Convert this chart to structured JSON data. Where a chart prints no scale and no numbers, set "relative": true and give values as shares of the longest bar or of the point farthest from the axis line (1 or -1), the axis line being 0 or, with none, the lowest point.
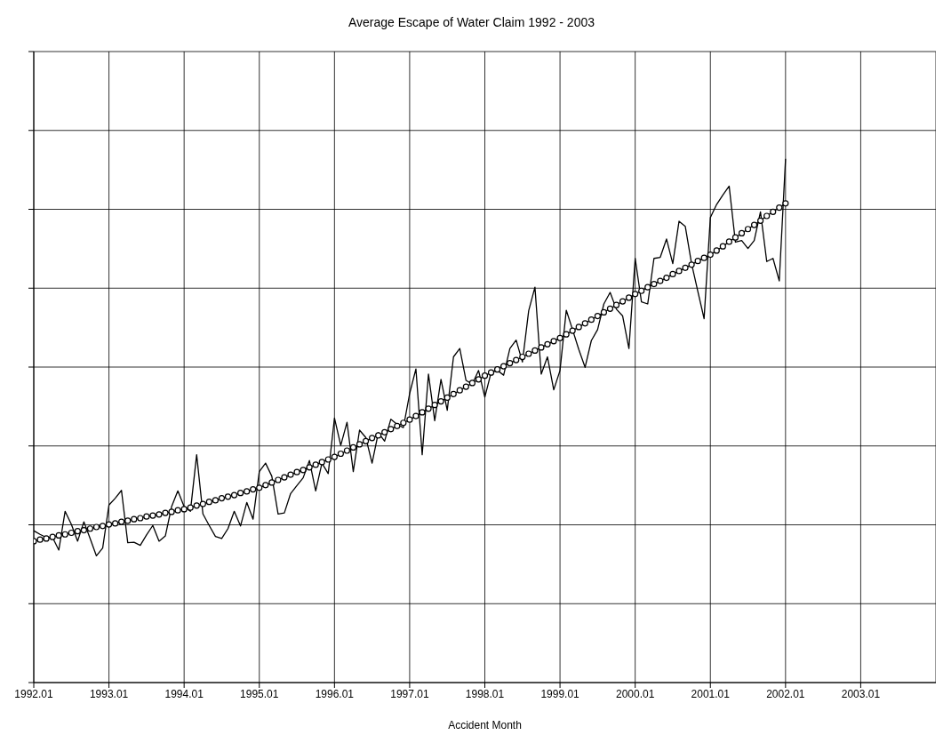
{
  "chart_data": {
    "type": "line",
    "title": "Average Escape of Water Claim 1992 - 2003",
    "xlabel": "Accident Month",
    "relative": true,
    "grid": true,
    "categories": [
      "1992.01",
      null,
      null,
      null,
      null,
      null,
      null,
      null,
      null,
      null,
      null,
      null,
      "1993.01",
      null,
      null,
      null,
      null,
      null,
      null,
      null,
      null,
      null,
      null,
      null,
      "1994.01",
      null,
      null,
      null,
      null,
      null,
      null,
      null,
      null,
      null,
      null,
      null,
      "1995.01",
      null,
      null,
      null,
      null,
      null,
      null,
      null,
      null,
      null,
      null,
      null,
      "1996.01",
      null,
      null,
      null,
      null,
      null,
      null,
      null,
      null,
      null,
      null,
      null,
      "1997.01",
      null,
      null,
      null,
      null,
      null,
      null,
      null,
      null,
      null,
      null,
      null,
      "1998.01",
      null,
      null,
      null,
      null,
      null,
      null,
      null,
      null,
      null,
      null,
      null,
      "1999.01",
      null,
      null,
      null,
      null,
      null,
      null,
      null,
      null,
      null,
      null,
      null,
      "2000.01",
      null,
      null,
      null,
      null,
      null,
      null,
      null,
      null,
      null,
      null,
      null,
      "2001.01",
      null,
      null,
      null,
      null,
      null,
      null,
      null,
      null,
      null,
      null,
      null,
      "2002.01",
      null,
      null,
      null,
      null,
      null,
      null,
      null,
      null,
      null,
      null,
      null,
      "2003.01",
      null,
      null,
      null,
      null,
      null,
      null,
      null,
      null,
      null,
      null,
      null
    ],
    "series": [
      {
        "color": "#000000",
        "marker": "none",
        "line_style": "solid",
        "values": [
          0.29,
          0.283,
          0.277,
          0.277,
          0.253,
          0.327,
          0.302,
          0.27,
          0.307,
          0.275,
          0.242,
          0.257,
          0.339,
          0.352,
          0.367,
          0.267,
          0.268,
          0.262,
          0.282,
          0.3,
          0.27,
          0.28,
          0.336,
          0.366,
          0.336,
          0.327,
          0.435,
          0.322,
          0.3,
          0.279,
          0.275,
          0.294,
          0.327,
          0.299,
          0.344,
          0.312,
          0.403,
          0.419,
          0.394,
          0.322,
          0.324,
          0.361,
          0.376,
          0.391,
          0.424,
          0.366,
          0.419,
          0.399,
          0.505,
          0.453,
          0.497,
          0.403,
          0.482,
          0.468,
          0.419,
          0.477,
          0.461,
          0.503,
          0.493,
          0.487,
          0.552,
          0.599,
          0.435,
          0.589,
          0.5,
          0.579,
          0.52,
          0.622,
          0.638,
          0.577,
          0.57,
          0.596,
          0.545,
          0.592,
          0.596,
          0.587,
          0.638,
          0.654,
          0.612,
          0.71,
          0.755,
          0.589,
          0.622,
          0.559,
          0.596,
          0.711,
          0.674,
          0.636,
          0.602,
          0.653,
          0.674,
          0.723,
          0.745,
          0.713,
          0.7,
          0.638,
          0.81,
          0.727,
          0.723,
          0.81,
          0.812,
          0.847,
          0.8,
          0.881,
          0.871,
          0.8,
          0.747,
          0.695,
          0.888,
          0.913,
          0.931,
          0.948,
          0.841,
          0.844,
          0.829,
          0.844,
          0.899,
          0.804,
          0.81,
          0.767,
          1,
          null,
          null,
          null,
          null,
          null,
          null,
          null,
          null,
          null,
          null,
          null,
          null,
          null,
          null,
          null,
          null,
          null,
          null,
          null,
          null,
          null,
          null,
          null
        ]
      },
      {
        "color": "#000000",
        "marker": "circle",
        "line_style": "solid",
        "values": [
          0.27,
          0.273,
          0.275,
          0.278,
          0.281,
          0.283,
          0.286,
          0.289,
          0.291,
          0.294,
          0.297,
          0.299,
          0.302,
          0.304,
          0.307,
          0.309,
          0.312,
          0.314,
          0.317,
          0.319,
          0.321,
          0.324,
          0.326,
          0.329,
          0.331,
          0.334,
          0.338,
          0.341,
          0.345,
          0.348,
          0.352,
          0.355,
          0.358,
          0.362,
          0.365,
          0.369,
          0.372,
          0.377,
          0.382,
          0.387,
          0.392,
          0.397,
          0.402,
          0.406,
          0.411,
          0.416,
          0.421,
          0.426,
          0.431,
          0.437,
          0.443,
          0.449,
          0.455,
          0.461,
          0.467,
          0.472,
          0.478,
          0.484,
          0.49,
          0.496,
          0.502,
          0.509,
          0.516,
          0.523,
          0.53,
          0.537,
          0.544,
          0.551,
          0.558,
          0.565,
          0.572,
          0.579,
          0.586,
          0.592,
          0.598,
          0.604,
          0.61,
          0.616,
          0.622,
          0.628,
          0.634,
          0.64,
          0.646,
          0.652,
          0.658,
          0.665,
          0.672,
          0.679,
          0.686,
          0.693,
          0.7,
          0.707,
          0.714,
          0.721,
          0.728,
          0.735,
          0.742,
          0.748,
          0.755,
          0.761,
          0.767,
          0.773,
          0.78,
          0.786,
          0.792,
          0.798,
          0.805,
          0.811,
          0.817,
          0.825,
          0.833,
          0.842,
          0.85,
          0.858,
          0.866,
          0.874,
          0.882,
          0.891,
          0.899,
          0.907,
          0.915,
          null,
          null,
          null,
          null,
          null,
          null,
          null,
          null,
          null,
          null,
          null,
          null,
          null,
          null,
          null,
          null,
          null,
          null,
          null,
          null,
          null,
          null,
          null
        ]
      }
    ]
  }
}
